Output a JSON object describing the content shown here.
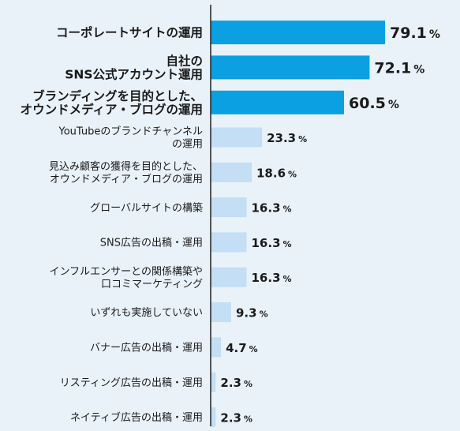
{
  "chart_data": {
    "type": "bar",
    "orientation": "horizontal",
    "title": "",
    "xlabel": "",
    "ylabel": "",
    "xlim": [
      0,
      79.1
    ],
    "unit": "%",
    "grid": false,
    "legend": "none",
    "colors": {
      "highlight": "#0aa0e2",
      "normal": "#c3def5",
      "axis": "#222222",
      "text": "#1a1a1a"
    },
    "categories": [
      {
        "lines": [
          "コーポレートサイトの運用"
        ],
        "value": 79.1,
        "value_label": "79.1",
        "highlight": true
      },
      {
        "lines": [
          "自社の",
          "SNS公式アカウント運用"
        ],
        "value": 72.1,
        "value_label": "72.1",
        "highlight": true
      },
      {
        "lines": [
          "ブランディングを目的とした、",
          "オウンドメディア・ブログの運用"
        ],
        "value": 60.5,
        "value_label": "60.5",
        "highlight": true
      },
      {
        "lines": [
          "YouTubeのブランドチャンネル",
          "の運用"
        ],
        "value": 23.3,
        "value_label": "23.3",
        "highlight": false
      },
      {
        "lines": [
          "見込み顧客の獲得を目的とした、",
          "オウンドメディア・ブログの運用"
        ],
        "value": 18.6,
        "value_label": "18.6",
        "highlight": false
      },
      {
        "lines": [
          "グローバルサイトの構築"
        ],
        "value": 16.3,
        "value_label": "16.3",
        "highlight": false
      },
      {
        "lines": [
          "SNS広告の出稿・運用"
        ],
        "value": 16.3,
        "value_label": "16.3",
        "highlight": false
      },
      {
        "lines": [
          "インフルエンサーとの関係構築や",
          "口コミマーケティング"
        ],
        "value": 16.3,
        "value_label": "16.3",
        "highlight": false
      },
      {
        "lines": [
          "いずれも実施していない"
        ],
        "value": 9.3,
        "value_label": "9.3",
        "highlight": false
      },
      {
        "lines": [
          "バナー広告の出稿・運用"
        ],
        "value": 4.7,
        "value_label": "4.7",
        "highlight": false
      },
      {
        "lines": [
          "リスティング広告の出稿・運用"
        ],
        "value": 2.3,
        "value_label": "2.3",
        "highlight": false
      },
      {
        "lines": [
          "ネイティブ広告の出稿・運用"
        ],
        "value": 2.3,
        "value_label": "2.3",
        "highlight": false
      }
    ]
  }
}
